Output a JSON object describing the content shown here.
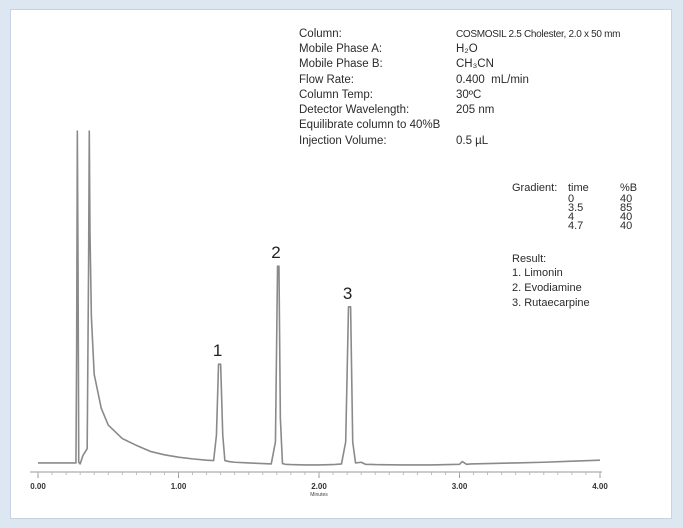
{
  "conditions": {
    "column_label": "Column:",
    "column_value": "COSMOSIL 2.5 Cholester, 2.0 x 50 mm",
    "mpa_label": "Mobile Phase A:",
    "mpa_value": "H₂O",
    "mpb_label": "Mobile Phase B:",
    "mpb_value": "CH₃CN",
    "flow_label": "Flow Rate:",
    "flow_value": "0.400  mL/min",
    "temp_label": "Column Temp:",
    "temp_value": "30ºC",
    "det_label": "Detector Wavelength:",
    "det_value": "205 nm",
    "equilibrate": "Equilibrate column to 40%B",
    "inj_label": "Injection Volume:",
    "inj_value": "0.5 µL"
  },
  "gradient": {
    "label": "Gradient:",
    "col_time": "time",
    "col_b": "%B",
    "rows": [
      {
        "time": "0",
        "b": "40"
      },
      {
        "time": "3.5",
        "b": "85"
      },
      {
        "time": "4",
        "b": "40"
      },
      {
        "time": "4.7",
        "b": "40"
      }
    ]
  },
  "result": {
    "label": "Result:",
    "items": [
      "1. Limonin",
      "2. Evodiamine",
      "3. Rutaecarpine"
    ]
  },
  "chart_data": {
    "type": "line",
    "title": "",
    "xlabel": "Minutes",
    "ylabel": "",
    "xlim": [
      0.0,
      4.0
    ],
    "ylim": [
      0,
      100
    ],
    "x_ticks": [
      "0.00",
      "1.00",
      "2.00",
      "3.00",
      "4.00"
    ],
    "x_tick_values": [
      0,
      1,
      2,
      3,
      4
    ],
    "series": [
      {
        "x": [
          0.0,
          0.27,
          0.275,
          0.28,
          0.285,
          0.29,
          0.3,
          0.32,
          0.35,
          0.36,
          0.365,
          0.37,
          0.38,
          0.4,
          0.45,
          0.5,
          0.6,
          0.7,
          0.8,
          0.9,
          1.0,
          1.1,
          1.2,
          1.25,
          1.27,
          1.285,
          1.3,
          1.315,
          1.33,
          1.36,
          1.4,
          1.5,
          1.6,
          1.66,
          1.69,
          1.705,
          1.715,
          1.725,
          1.74,
          1.76,
          1.8,
          1.9,
          2.0,
          2.1,
          2.16,
          2.19,
          2.21,
          2.225,
          2.24,
          2.26,
          2.3,
          2.33,
          2.4,
          2.6,
          2.8,
          3.0,
          3.02,
          3.05,
          3.08,
          3.2,
          3.4,
          3.6,
          3.8,
          4.0
        ],
        "y": [
          1.8,
          1.8,
          35,
          100,
          60,
          2,
          1.5,
          4,
          6,
          60,
          100,
          70,
          45,
          28,
          18,
          13,
          9,
          7,
          5.2,
          4.2,
          3.5,
          3.0,
          2.6,
          2.5,
          10,
          31,
          31,
          10,
          2.5,
          2.2,
          2.0,
          1.8,
          1.6,
          1.5,
          8,
          60,
          60,
          15,
          1.6,
          1.4,
          1.3,
          1.2,
          1.2,
          1.3,
          1.5,
          8,
          48,
          48,
          8,
          1.8,
          2.0,
          1.4,
          1.3,
          1.2,
          1.2,
          1.4,
          2.2,
          1.4,
          1.5,
          1.6,
          1.8,
          2.0,
          2.3,
          2.6
        ]
      }
    ],
    "peak_labels": [
      {
        "label": "1",
        "x": 1.3,
        "y": 31
      },
      {
        "label": "2",
        "x": 1.715,
        "y": 60
      },
      {
        "label": "3",
        "x": 2.225,
        "y": 48
      }
    ]
  }
}
